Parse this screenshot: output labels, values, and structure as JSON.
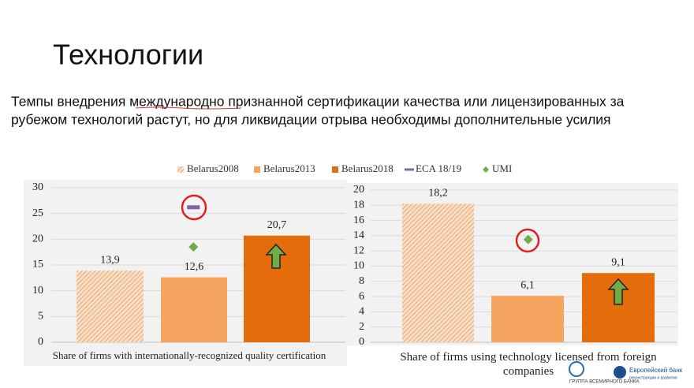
{
  "slide": {
    "title": "Технологии",
    "subtitle": [
      "Темпы внедрения международно признанной сертификации качества или лицензированных за",
      "рубежом технологий растут, но для ликвидации отрыва необходимы дополнительные усилия"
    ]
  },
  "logos": {
    "world_bank": "ГРУППА ВСЕМИРНОГО БАНКА",
    "ebrd": [
      "Европейский банк",
      "реконструкции и развития"
    ]
  },
  "chart_data": [
    {
      "type": "bar",
      "categories": [
        "Share of firms with internationally-recognized quality certification"
      ],
      "ylim": [
        0,
        30
      ],
      "yticks": [
        0,
        5,
        10,
        15,
        20,
        25,
        30
      ],
      "grid": true,
      "legend": "top",
      "series": [
        {
          "name": "Belarus2008",
          "color": "#f4b183",
          "pattern": "hatch",
          "marker": "bar",
          "values": [
            13.9
          ],
          "value_labels": [
            "13,9"
          ]
        },
        {
          "name": "Belarus2013",
          "color": "#f5a55f",
          "marker": "bar",
          "values": [
            12.6
          ],
          "value_labels": [
            "12,6"
          ]
        },
        {
          "name": "Belarus2018",
          "color": "#e46c0a",
          "marker": "bar",
          "values": [
            20.7
          ],
          "value_labels": [
            "20,7"
          ]
        },
        {
          "name": "ECA 18/19",
          "color": "#8064a2",
          "marker": "line",
          "values": [
            26.2
          ]
        },
        {
          "name": "UMI",
          "color": "#70ad47",
          "marker": "diamond",
          "values": [
            18.5
          ]
        }
      ]
    },
    {
      "type": "bar",
      "categories": [
        "Share of firms using technology licensed from foreign companies"
      ],
      "ylim": [
        0,
        20
      ],
      "yticks": [
        0,
        2,
        4,
        6,
        8,
        10,
        12,
        14,
        16,
        18,
        20
      ],
      "grid": true,
      "series": [
        {
          "values": [
            18.2
          ],
          "value_labels": [
            "18,2"
          ]
        },
        {
          "values": [
            6.1
          ],
          "value_labels": [
            "6,1"
          ]
        },
        {
          "values": [
            9.1
          ],
          "value_labels": [
            "9,1"
          ]
        },
        {
          "values": [
            null
          ]
        },
        {
          "values": [
            13.5
          ]
        }
      ]
    }
  ]
}
